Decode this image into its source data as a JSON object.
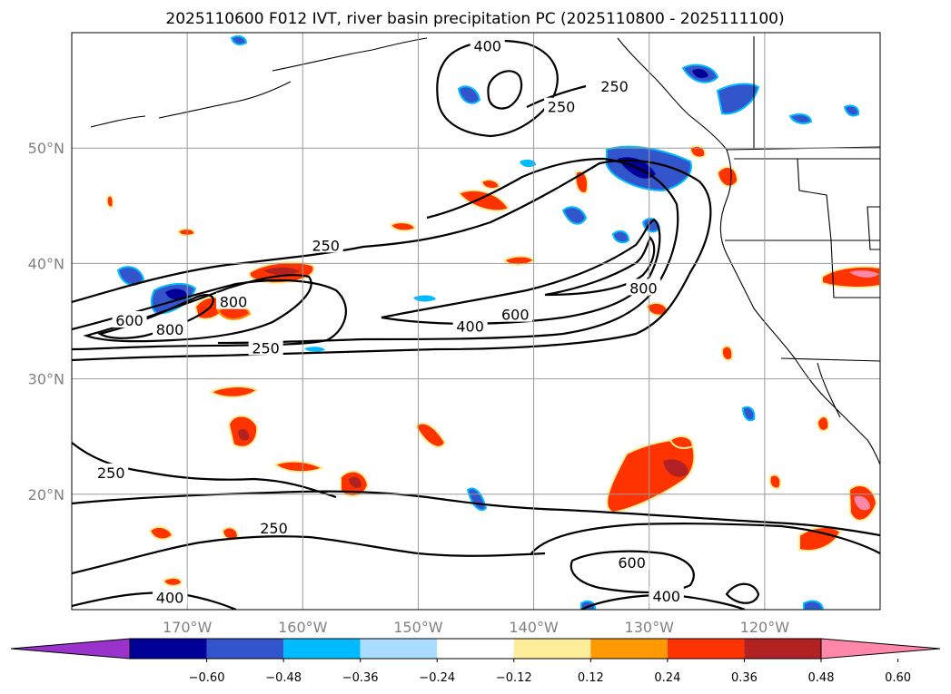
{
  "title": "2025110600 F012 IVT, river basin precipitation PC (2025110800 - 2025111100)",
  "map": {
    "lat_range": [
      10,
      60
    ],
    "lon_range": [
      -180,
      -110
    ],
    "lat_labels": [
      {
        "lat": 50,
        "label": "50°N"
      },
      {
        "lat": 40,
        "label": "40°N"
      },
      {
        "lat": 30,
        "label": "30°N"
      },
      {
        "lat": 20,
        "label": "20°N"
      }
    ],
    "lon_labels": [
      {
        "lon": -170,
        "label": "170°W"
      },
      {
        "lon": -160,
        "label": "160°W"
      },
      {
        "lon": -150,
        "label": "150°W"
      },
      {
        "lon": -140,
        "label": "140°W"
      },
      {
        "lon": -130,
        "label": "130°W"
      },
      {
        "lon": -120,
        "label": "120°W"
      }
    ],
    "contour_labels": [
      {
        "lon": -144,
        "lat": 58.8,
        "text": "400"
      },
      {
        "lon": -133,
        "lat": 55.3,
        "text": "250"
      },
      {
        "lon": -137.6,
        "lat": 53.5,
        "text": "250"
      },
      {
        "lon": -158,
        "lat": 41.5,
        "text": "250"
      },
      {
        "lon": -166,
        "lat": 36.6,
        "text": "800"
      },
      {
        "lon": -175,
        "lat": 35.0,
        "text": "600"
      },
      {
        "lon": -171.5,
        "lat": 34.2,
        "text": "800"
      },
      {
        "lon": -130.5,
        "lat": 37.8,
        "text": "800"
      },
      {
        "lon": -141.6,
        "lat": 35.5,
        "text": "600"
      },
      {
        "lon": -145.5,
        "lat": 34.5,
        "text": "400"
      },
      {
        "lon": -163.2,
        "lat": 32.6,
        "text": "250"
      },
      {
        "lon": -176.6,
        "lat": 21.8,
        "text": "250"
      },
      {
        "lon": -162.5,
        "lat": 17.0,
        "text": "250"
      },
      {
        "lon": -131.5,
        "lat": 14.0,
        "text": "600"
      },
      {
        "lon": -171.5,
        "lat": 11.0,
        "text": "400"
      },
      {
        "lon": -128.5,
        "lat": 11.1,
        "text": "400"
      }
    ]
  },
  "colorbar": {
    "colors": [
      "#9933cc",
      "#000099",
      "#3355cc",
      "#00bbff",
      "#aaddff",
      "#ffffff",
      "#ffee99",
      "#ff9900",
      "#ff3300",
      "#b22222",
      "#ff88aa"
    ],
    "ticks": [
      "−0.60",
      "−0.48",
      "−0.36",
      "−0.24",
      "−0.12",
      "0.12",
      "0.24",
      "0.36",
      "0.48",
      "0.60"
    ]
  }
}
